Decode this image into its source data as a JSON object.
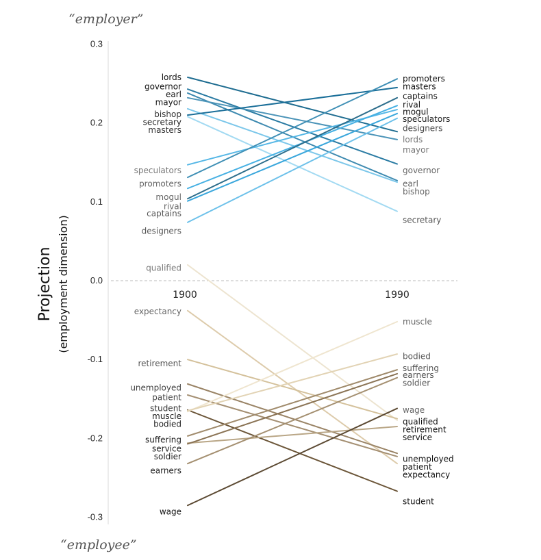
{
  "chart_data": {
    "type": "line",
    "ylabel": "Projection",
    "ylabel_sub": "(employment dimension)",
    "top_pole_label": "“employer”",
    "bottom_pole_label": "“employee”",
    "x": [
      "1900",
      "1990"
    ],
    "ylim": [
      -0.3,
      0.3
    ],
    "yticks": [
      "0.3",
      "0.2",
      "0.1",
      "0.0",
      "-0.1",
      "-0.2",
      "-0.3"
    ],
    "ytick_values": [
      0.3,
      0.2,
      0.1,
      0.0,
      -0.1,
      -0.2,
      -0.3
    ],
    "zero_line": "dashed",
    "series": [
      {
        "name": "lords",
        "values": [
          0.258,
          0.189
        ],
        "color": "#1f6d91"
      },
      {
        "name": "governor",
        "values": [
          0.243,
          0.148
        ],
        "color": "#2a7ba3"
      },
      {
        "name": "earl",
        "values": [
          0.238,
          0.127
        ],
        "color": "#3e8ab0"
      },
      {
        "name": "mayor",
        "values": [
          0.232,
          0.179
        ],
        "color": "#4c94b8"
      },
      {
        "name": "bishop",
        "values": [
          0.218,
          0.125
        ],
        "color": "#7cc7ea"
      },
      {
        "name": "secretary",
        "values": [
          0.208,
          0.088
        ],
        "color": "#a3daf2"
      },
      {
        "name": "masters",
        "values": [
          0.21,
          0.245
        ],
        "color": "#1b6f99"
      },
      {
        "name": "speculators",
        "values": [
          0.147,
          0.217
        ],
        "color": "#55b7e6"
      },
      {
        "name": "promoters",
        "values": [
          0.131,
          0.256
        ],
        "color": "#3f8fb5"
      },
      {
        "name": "mogul",
        "values": [
          0.117,
          0.222
        ],
        "color": "#46b0e3"
      },
      {
        "name": "rival",
        "values": [
          0.104,
          0.232
        ],
        "color": "#2d6e8c"
      },
      {
        "name": "captains",
        "values": [
          0.101,
          0.212
        ],
        "color": "#3aa7dc"
      },
      {
        "name": "designers",
        "values": [
          0.074,
          0.206
        ],
        "color": "#6dc1ea"
      },
      {
        "name": "qualified",
        "values": [
          0.02,
          -0.177
        ],
        "color": "#ede4d0"
      },
      {
        "name": "expectancy",
        "values": [
          -0.038,
          -0.232
        ],
        "color": "#ddcbab"
      },
      {
        "name": "retirement",
        "values": [
          -0.1,
          -0.175
        ],
        "color": "#d4c19b"
      },
      {
        "name": "unemployed",
        "values": [
          -0.131,
          -0.219
        ],
        "color": "#9a8466"
      },
      {
        "name": "patient",
        "values": [
          -0.145,
          -0.223
        ],
        "color": "#a48f72"
      },
      {
        "name": "student",
        "values": [
          -0.164,
          -0.267
        ],
        "color": "#6b5538"
      },
      {
        "name": "muscle",
        "values": [
          -0.166,
          -0.052
        ],
        "color": "#efe5cf"
      },
      {
        "name": "bodied",
        "values": [
          -0.165,
          -0.093
        ],
        "color": "#e2d3b4"
      },
      {
        "name": "suffering",
        "values": [
          -0.197,
          -0.113
        ],
        "color": "#a08b6c"
      },
      {
        "name": "service",
        "values": [
          -0.206,
          -0.185
        ],
        "color": "#b9a686"
      },
      {
        "name": "soldier",
        "values": [
          -0.207,
          -0.118
        ],
        "color": "#8a7354"
      },
      {
        "name": "earners",
        "values": [
          -0.232,
          -0.123
        ],
        "color": "#a48f70"
      },
      {
        "name": "wage",
        "values": [
          -0.285,
          -0.162
        ],
        "color": "#5c4a33"
      }
    ],
    "labels_1900": [
      {
        "text": "lords",
        "y": 0.258,
        "color": "#111111"
      },
      {
        "text": "governor",
        "y": 0.246,
        "color": "#111111"
      },
      {
        "text": "earl",
        "y": 0.236,
        "color": "#111111"
      },
      {
        "text": "mayor",
        "y": 0.226,
        "color": "#111111"
      },
      {
        "text": "bishop",
        "y": 0.211,
        "color": "#333333"
      },
      {
        "text": "secretary",
        "y": 0.201,
        "color": "#222222"
      },
      {
        "text": "masters",
        "y": 0.191,
        "color": "#333333"
      },
      {
        "text": "speculators",
        "y": 0.14,
        "color": "#777777"
      },
      {
        "text": "promoters",
        "y": 0.123,
        "color": "#666666"
      },
      {
        "text": "mogul",
        "y": 0.106,
        "color": "#666666"
      },
      {
        "text": "rival",
        "y": 0.094,
        "color": "#666666"
      },
      {
        "text": "captains",
        "y": 0.085,
        "color": "#555555"
      },
      {
        "text": "designers",
        "y": 0.063,
        "color": "#555555"
      },
      {
        "text": "qualified",
        "y": 0.016,
        "color": "#777777"
      },
      {
        "text": "expectancy",
        "y": -0.039,
        "color": "#666666"
      },
      {
        "text": "retirement",
        "y": -0.105,
        "color": "#555555"
      },
      {
        "text": "unemployed",
        "y": -0.136,
        "color": "#444444"
      },
      {
        "text": "patient",
        "y": -0.148,
        "color": "#444444"
      },
      {
        "text": "student",
        "y": -0.162,
        "color": "#333333"
      },
      {
        "text": "muscle",
        "y": -0.172,
        "color": "#222222"
      },
      {
        "text": "bodied",
        "y": -0.182,
        "color": "#222222"
      },
      {
        "text": "suffering",
        "y": -0.202,
        "color": "#222222"
      },
      {
        "text": "service",
        "y": -0.213,
        "color": "#222222"
      },
      {
        "text": "soldier",
        "y": -0.223,
        "color": "#222222"
      },
      {
        "text": "earners",
        "y": -0.241,
        "color": "#222222"
      },
      {
        "text": "wage",
        "y": -0.293,
        "color": "#111111"
      }
    ],
    "labels_1990": [
      {
        "text": "promoters",
        "y": 0.256,
        "color": "#111111"
      },
      {
        "text": "masters",
        "y": 0.246,
        "color": "#111111"
      },
      {
        "text": "captains",
        "y": 0.234,
        "color": "#111111"
      },
      {
        "text": "rival",
        "y": 0.223,
        "color": "#111111"
      },
      {
        "text": "mogul",
        "y": 0.214,
        "color": "#111111"
      },
      {
        "text": "speculators",
        "y": 0.205,
        "color": "#222222"
      },
      {
        "text": "designers",
        "y": 0.193,
        "color": "#444444"
      },
      {
        "text": "lords",
        "y": 0.179,
        "color": "#777777"
      },
      {
        "text": "mayor",
        "y": 0.166,
        "color": "#777777"
      },
      {
        "text": "governor",
        "y": 0.14,
        "color": "#666666"
      },
      {
        "text": "earl",
        "y": 0.123,
        "color": "#666666"
      },
      {
        "text": "bishop",
        "y": 0.113,
        "color": "#666666"
      },
      {
        "text": "secretary",
        "y": 0.077,
        "color": "#555555"
      },
      {
        "text": "muscle",
        "y": -0.052,
        "color": "#666666"
      },
      {
        "text": "bodied",
        "y": -0.096,
        "color": "#555555"
      },
      {
        "text": "suffering",
        "y": -0.111,
        "color": "#555555"
      },
      {
        "text": "earners",
        "y": -0.12,
        "color": "#555555"
      },
      {
        "text": "soldier",
        "y": -0.13,
        "color": "#555555"
      },
      {
        "text": "wage",
        "y": -0.164,
        "color": "#666666"
      },
      {
        "text": "qualified",
        "y": -0.179,
        "color": "#111111"
      },
      {
        "text": "retirement",
        "y": -0.189,
        "color": "#111111"
      },
      {
        "text": "service",
        "y": -0.199,
        "color": "#111111"
      },
      {
        "text": "unemployed",
        "y": -0.226,
        "color": "#111111"
      },
      {
        "text": "patient",
        "y": -0.236,
        "color": "#111111"
      },
      {
        "text": "expectancy",
        "y": -0.246,
        "color": "#111111"
      },
      {
        "text": "student",
        "y": -0.28,
        "color": "#111111"
      }
    ]
  }
}
